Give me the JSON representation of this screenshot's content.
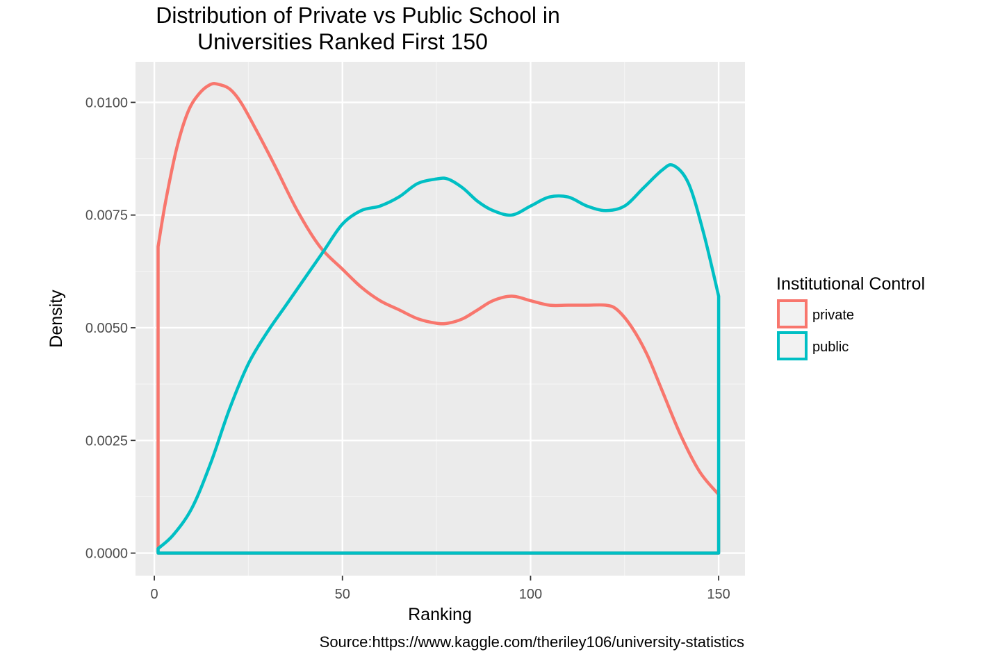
{
  "chart_data": {
    "type": "line",
    "title_lines": [
      "Distribution of Private vs Public School in",
      "Universities Ranked First 150"
    ],
    "xlabel": "Ranking",
    "ylabel": "Density",
    "caption": "Source:https://www.kaggle.com/theriley106/university-statistics",
    "xlim": [
      -5,
      157
    ],
    "ylim": [
      -0.0005,
      0.0109
    ],
    "x_ticks": [
      0,
      50,
      100,
      150
    ],
    "x_tick_labels": [
      "0",
      "50",
      "100",
      "150"
    ],
    "y_ticks": [
      0,
      0.0025,
      0.005,
      0.0075,
      0.01
    ],
    "y_tick_labels": [
      "0.0000",
      "0.0025",
      "0.0050",
      "0.0075",
      "0.0100"
    ],
    "grid": true,
    "legend": {
      "title": "Institutional Control",
      "position": "right"
    },
    "series": [
      {
        "name": "private",
        "color": "#F8766D",
        "x": [
          1,
          3,
          6,
          9,
          12,
          15,
          17,
          20,
          23,
          27,
          32,
          38,
          44,
          50,
          55,
          60,
          65,
          70,
          75,
          78,
          82,
          86,
          90,
          95,
          100,
          105,
          110,
          115,
          120,
          123,
          127,
          131,
          135,
          140,
          145,
          150
        ],
        "y": [
          0.0068,
          0.0078,
          0.009,
          0.0098,
          0.0102,
          0.0104,
          0.0104,
          0.0103,
          0.01,
          0.0094,
          0.0086,
          0.0076,
          0.0068,
          0.0063,
          0.0059,
          0.0056,
          0.0054,
          0.0052,
          0.0051,
          0.0051,
          0.0052,
          0.0054,
          0.0056,
          0.0057,
          0.0056,
          0.0055,
          0.0055,
          0.0055,
          0.0055,
          0.0054,
          0.005,
          0.0044,
          0.0036,
          0.0026,
          0.0018,
          0.0013
        ]
      },
      {
        "name": "public",
        "color": "#00BFC4",
        "x": [
          1,
          5,
          10,
          15,
          20,
          25,
          30,
          35,
          40,
          45,
          50,
          55,
          60,
          65,
          70,
          75,
          78,
          82,
          86,
          90,
          95,
          100,
          105,
          110,
          115,
          120,
          125,
          130,
          135,
          138,
          142,
          146,
          150
        ],
        "y": [
          0.0001,
          0.0004,
          0.001,
          0.002,
          0.0032,
          0.0042,
          0.0049,
          0.0055,
          0.0061,
          0.0067,
          0.0073,
          0.0076,
          0.0077,
          0.0079,
          0.0082,
          0.0083,
          0.0083,
          0.0081,
          0.0078,
          0.0076,
          0.0075,
          0.0077,
          0.0079,
          0.0079,
          0.0077,
          0.0076,
          0.0077,
          0.0081,
          0.0085,
          0.0086,
          0.0082,
          0.0071,
          0.0057
        ]
      }
    ]
  }
}
